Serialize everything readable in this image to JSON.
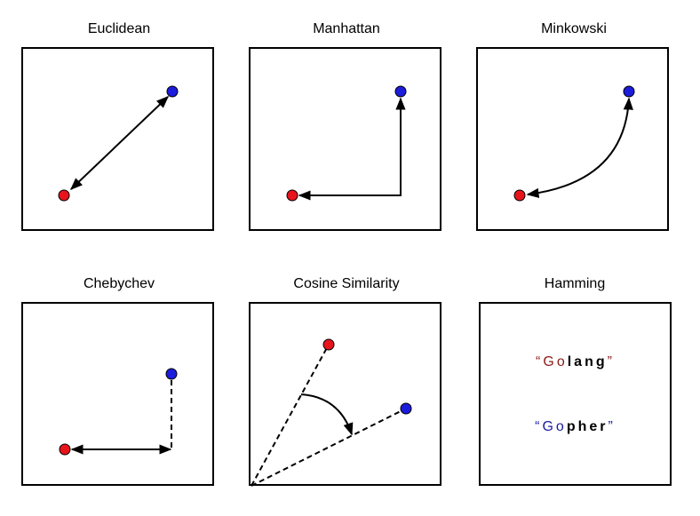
{
  "panels": [
    {
      "title": "Euclidean"
    },
    {
      "title": "Manhattan"
    },
    {
      "title": "Minkowski"
    },
    {
      "title": "Chebychev"
    },
    {
      "title": "Cosine Similarity"
    },
    {
      "title": "Hamming",
      "word1": {
        "open": "“",
        "chars": [
          "G",
          "o",
          "l",
          "a",
          "n",
          "g"
        ],
        "close": "”"
      },
      "word2": {
        "open": "“",
        "chars": [
          "G",
          "o",
          "p",
          "h",
          "e",
          "r"
        ],
        "close": "”"
      }
    }
  ],
  "colors": {
    "red_point": "#e8141c",
    "blue_point": "#1c1cdc",
    "hamming_match_word1": "#8b1a1a",
    "hamming_match_word2": "#1a1aa0",
    "hamming_diff": "#000000"
  }
}
